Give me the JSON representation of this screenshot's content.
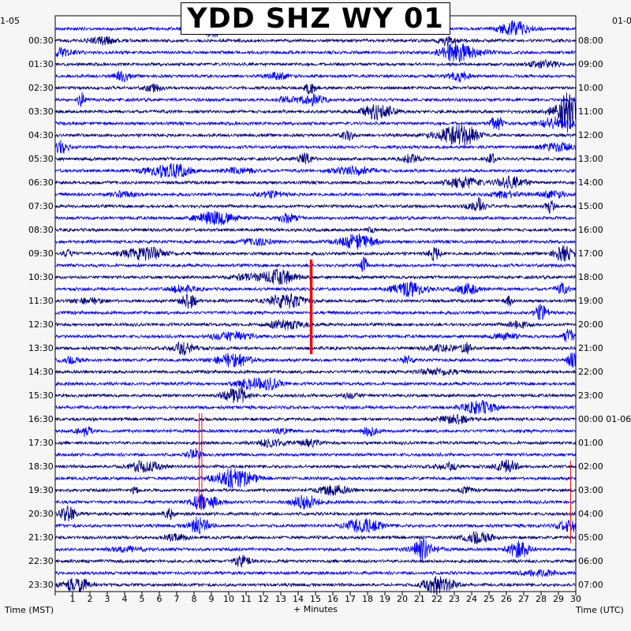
{
  "header": {
    "title": "YDD SHZ WY 01",
    "start_date_left": "1-05",
    "start_date_right": "01-0"
  },
  "chart_data": {
    "type": "line",
    "title": "YDD SHZ WY 01",
    "xlabel": "+ Minutes",
    "ylabel_left": "Time (MST)",
    "ylabel_right": "Time (UTC)",
    "xlim": [
      0,
      30
    ],
    "x_ticks": [
      "1",
      "2",
      "3",
      "4",
      "5",
      "6",
      "7",
      "8",
      "9",
      "10",
      "11",
      "12",
      "13",
      "14",
      "15",
      "16",
      "17",
      "18",
      "19",
      "20",
      "21",
      "22",
      "23",
      "24",
      "25",
      "26",
      "27",
      "28",
      "29",
      "30"
    ],
    "left_ticks": [
      "00:30",
      "01:30",
      "02:30",
      "03:30",
      "04:30",
      "05:30",
      "06:30",
      "07:30",
      "08:30",
      "09:30",
      "10:30",
      "11:30",
      "12:30",
      "13:30",
      "14:30",
      "15:30",
      "16:30",
      "17:30",
      "18:30",
      "19:30",
      "20:30",
      "21:30",
      "22:30",
      "23:30"
    ],
    "right_ticks": [
      "08:00",
      "09:00",
      "10:00",
      "11:00",
      "12:00",
      "13:00",
      "14:00",
      "15:00",
      "16:00",
      "17:00",
      "18:00",
      "19:00",
      "20:00",
      "21:00",
      "22:00",
      "23:00",
      "00:00 01-06",
      "01:00",
      "02:00",
      "03:00",
      "04:00",
      "05:00",
      "06:00",
      "07:00"
    ],
    "trace_colors": [
      "#0000ff",
      "#00007f"
    ],
    "event_color": "#ff0000",
    "line_count": 48
  }
}
